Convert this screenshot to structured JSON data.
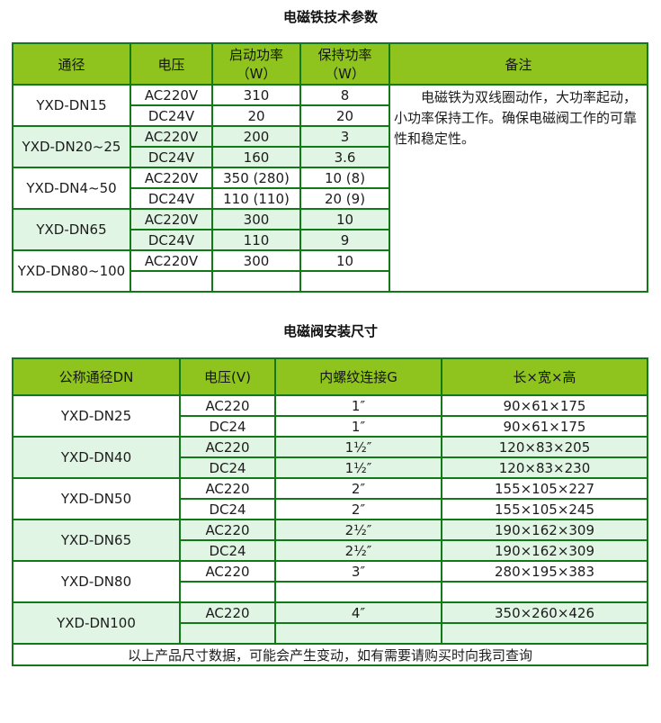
{
  "colors": {
    "header_green": "#8ec41d",
    "row_pale_green": "#e1f5e4",
    "border_green": "#117a17",
    "background": "#ffffff"
  },
  "table1": {
    "title": "电磁铁技术参数",
    "headers": [
      "通径",
      "电压",
      "启动功率（W）",
      "保持功率（W）",
      "备注"
    ],
    "remark": "电磁铁为双线圈动作，大功率起动，小功率保持工作。确保电磁阀工作的可靠性和稳定性。",
    "groups": [
      {
        "model": "YXD-DN15",
        "shade": false,
        "rows": [
          [
            "AC220V",
            "310",
            "8"
          ],
          [
            "DC24V",
            "20",
            "20"
          ]
        ]
      },
      {
        "model": "YXD-DN20~25",
        "shade": true,
        "rows": [
          [
            "AC220V",
            "200",
            "3"
          ],
          [
            "DC24V",
            "160",
            "3.6"
          ]
        ]
      },
      {
        "model": "YXD-DN4~50",
        "shade": false,
        "rows": [
          [
            "AC220V",
            "350 (280)",
            "10 (8)"
          ],
          [
            "DC24V",
            "110 (110)",
            "20 (9)"
          ]
        ]
      },
      {
        "model": "YXD-DN65",
        "shade": true,
        "rows": [
          [
            "AC220V",
            "300",
            "10"
          ],
          [
            "DC24V",
            "110",
            "9"
          ]
        ]
      },
      {
        "model": "YXD-DN80~100",
        "shade": false,
        "rows": [
          [
            "AC220V",
            "300",
            "10"
          ],
          [
            "",
            "",
            ""
          ]
        ]
      }
    ]
  },
  "table2": {
    "title": "电磁阀安装尺寸",
    "headers": [
      "公称通径DN",
      "电压(V)",
      "内螺纹连接G",
      "长×宽×高"
    ],
    "footer": "以上产品尺寸数据，可能会产生变动，如有需要请购买时向我司查询",
    "groups": [
      {
        "model": "YXD-DN25",
        "shade": false,
        "rows": [
          [
            "AC220",
            "1″",
            "90×61×175"
          ],
          [
            "DC24",
            "1″",
            "90×61×175"
          ]
        ]
      },
      {
        "model": "YXD-DN40",
        "shade": true,
        "rows": [
          [
            "AC220",
            "1½″",
            "120×83×205"
          ],
          [
            "DC24",
            "1½″",
            "120×83×230"
          ]
        ]
      },
      {
        "model": "YXD-DN50",
        "shade": false,
        "rows": [
          [
            "AC220",
            "2″",
            "155×105×227"
          ],
          [
            "DC24",
            "2″",
            "155×105×245"
          ]
        ]
      },
      {
        "model": "YXD-DN65",
        "shade": true,
        "rows": [
          [
            "AC220",
            "2½″",
            "190×162×309"
          ],
          [
            "DC24",
            "2½″",
            "190×162×309"
          ]
        ]
      },
      {
        "model": "YXD-DN80",
        "shade": false,
        "rows": [
          [
            "AC220",
            "3″",
            "280×195×383"
          ],
          [
            "",
            "",
            ""
          ]
        ]
      },
      {
        "model": "YXD-DN100",
        "shade": true,
        "rows": [
          [
            "AC220",
            "4″",
            "350×260×426"
          ],
          [
            "",
            "",
            ""
          ]
        ]
      }
    ]
  }
}
